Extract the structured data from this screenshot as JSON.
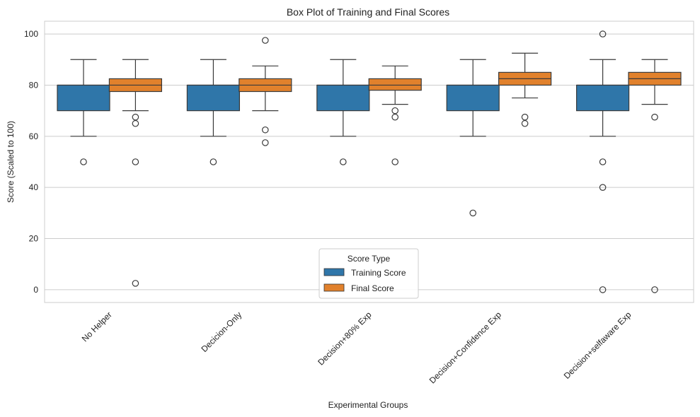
{
  "chart_data": {
    "type": "boxplot",
    "title": "Box Plot of Training and Final Scores",
    "xlabel": "Experimental Groups",
    "ylabel": "Score (Scaled to 100)",
    "ylim": [
      -5,
      105
    ],
    "yticks": [
      0,
      20,
      40,
      60,
      80,
      100
    ],
    "grid": true,
    "categories": [
      "No Helper",
      "Decicion-Only",
      "Decision+80% Exp",
      "Decision+Confidence Exp",
      "Decision+selfaware Exp"
    ],
    "legend": {
      "title": "Score Type",
      "placement": "bottom-center",
      "entries": [
        "Training Score",
        "Final Score"
      ]
    },
    "series": [
      {
        "name": "Training Score",
        "color": "#2f76a9",
        "boxes": [
          {
            "whisker_low": 60,
            "q1": 70,
            "median": 80,
            "q3": 80,
            "whisker_high": 90,
            "outliers": [
              50
            ]
          },
          {
            "whisker_low": 60,
            "q1": 70,
            "median": 80,
            "q3": 80,
            "whisker_high": 90,
            "outliers": [
              50
            ]
          },
          {
            "whisker_low": 60,
            "q1": 70,
            "median": 80,
            "q3": 80,
            "whisker_high": 90,
            "outliers": [
              50
            ]
          },
          {
            "whisker_low": 60,
            "q1": 70,
            "median": 80,
            "q3": 80,
            "whisker_high": 90,
            "outliers": [
              30
            ]
          },
          {
            "whisker_low": 60,
            "q1": 70,
            "median": 80,
            "q3": 80,
            "whisker_high": 90,
            "outliers": [
              100,
              50,
              40,
              0
            ]
          }
        ]
      },
      {
        "name": "Final Score",
        "color": "#e1812c",
        "boxes": [
          {
            "whisker_low": 70,
            "q1": 77.5,
            "median": 80,
            "q3": 82.5,
            "whisker_high": 90,
            "outliers": [
              67.5,
              65,
              50,
              2.5
            ]
          },
          {
            "whisker_low": 70,
            "q1": 77.5,
            "median": 80,
            "q3": 82.5,
            "whisker_high": 87.5,
            "outliers": [
              97.5,
              62.5,
              57.5
            ]
          },
          {
            "whisker_low": 72.5,
            "q1": 78,
            "median": 80,
            "q3": 82.5,
            "whisker_high": 87.5,
            "outliers": [
              70,
              67.5,
              50
            ]
          },
          {
            "whisker_low": 75,
            "q1": 80,
            "median": 82.5,
            "q3": 85,
            "whisker_high": 92.5,
            "outliers": [
              67.5,
              65
            ]
          },
          {
            "whisker_low": 72.5,
            "q1": 80,
            "median": 82.5,
            "q3": 85,
            "whisker_high": 90,
            "outliers": [
              67.5,
              0
            ]
          }
        ]
      }
    ]
  }
}
